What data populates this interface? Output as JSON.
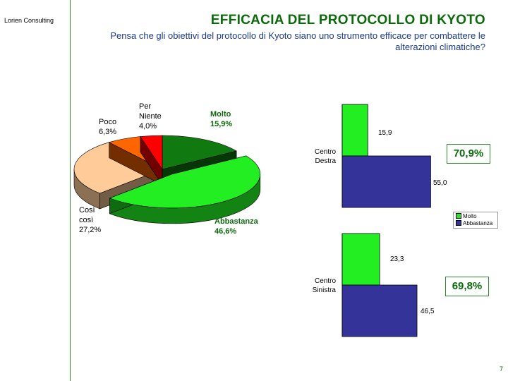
{
  "brand": "Lorien Consulting",
  "title": "EFFICACIA DEL PROTOCOLLO DI KYOTO",
  "subtitle": "Pensa che gli obiettivi del protocollo di Kyoto siano uno strumento efficace per combattere le alterazioni climatiche?",
  "page_number": "7",
  "colors": {
    "molto": "#107a10",
    "abbastanza": "#22ee22",
    "cosi_cosi": "#ffcc99",
    "poco": "#ff6600",
    "per_niente": "#ff0000",
    "bar_molto": "#22ee22",
    "bar_abbastanza": "#333399"
  },
  "pie_labels": {
    "molto": "Molto\n15,9%",
    "abbastanza": "Abbastanza\n46,6%",
    "cosi_cosi": "Così\ncosì\n27,2%",
    "poco": "Poco\n6,3%",
    "per_niente": "Per\nNiente\n4,0%"
  },
  "bar_labels": {
    "cd_category": "Centro\nDestra",
    "cs_category": "Centro\nSinistra",
    "cd_molto": "15,9",
    "cd_abbastanza": "55,0",
    "cs_molto": "23,3",
    "cs_abbastanza": "46,5"
  },
  "totals": {
    "cd": "70,9%",
    "cs": "69,8%"
  },
  "legend": {
    "molto": "Molto",
    "abbastanza": "Abbastanza"
  },
  "chart_data": [
    {
      "type": "pie",
      "categories": [
        "Molto",
        "Abbastanza",
        "Così così",
        "Poco",
        "Per Niente"
      ],
      "values": [
        15.9,
        46.6,
        27.2,
        6.3,
        4.0
      ]
    },
    {
      "type": "bar",
      "orientation": "horizontal",
      "categories": [
        "Centro Destra",
        "Centro Sinistra"
      ],
      "series": [
        {
          "name": "Molto",
          "values": [
            15.9,
            23.3
          ]
        },
        {
          "name": "Abbastanza",
          "values": [
            55.0,
            46.5
          ]
        }
      ],
      "totals": [
        70.9,
        69.8
      ],
      "legend_position": "right"
    }
  ]
}
